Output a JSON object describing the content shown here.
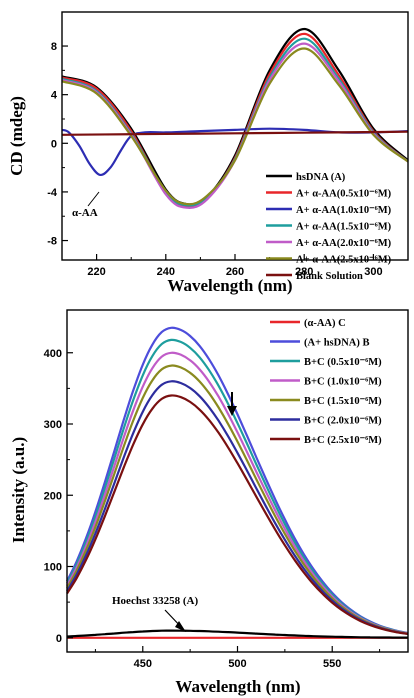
{
  "chart_data": [
    {
      "type": "line",
      "xlabel": "Wavelength (nm)",
      "ylabel": "CD (mdeg)",
      "xlim": [
        210,
        310
      ],
      "ylim": [
        -9.6,
        10.8
      ],
      "xticks": [
        220,
        240,
        260,
        280,
        300
      ],
      "yticks": [
        -8,
        -4,
        0,
        4,
        8
      ],
      "yticks_minor": [
        -6,
        -2,
        2,
        6
      ],
      "xticks_minor": [
        210,
        230,
        250,
        270,
        290,
        310
      ],
      "grid": false,
      "legend_position": "bottom-right",
      "annotation": "α-AA",
      "series": [
        {
          "name": "hsDNA (A)",
          "color": "#000000",
          "points": [
            [
              210,
              5.5
            ],
            [
              220,
              4.6
            ],
            [
              230,
              1.2
            ],
            [
              240,
              -3.8
            ],
            [
              246,
              -5.0
            ],
            [
              252,
              -4.4
            ],
            [
              260,
              -1.0
            ],
            [
              270,
              6.0
            ],
            [
              280,
              9.4
            ],
            [
              290,
              6.0
            ],
            [
              300,
              1.2
            ],
            [
              310,
              -1.4
            ]
          ]
        },
        {
          "name": "A+ α-AA(0.5x10⁻⁶M)",
          "color": "#e8262a",
          "points": [
            [
              210,
              5.4
            ],
            [
              220,
              4.5
            ],
            [
              230,
              1.0
            ],
            [
              240,
              -4.1
            ],
            [
              246,
              -5.2
            ],
            [
              252,
              -4.5
            ],
            [
              260,
              -1.2
            ],
            [
              270,
              5.7
            ],
            [
              280,
              9.0
            ],
            [
              290,
              5.6
            ],
            [
              300,
              1.0
            ],
            [
              310,
              -1.5
            ]
          ]
        },
        {
          "name": "A+ α-AA(1.0x10⁻⁶M)",
          "color": "#2d2db3",
          "points": [
            [
              210,
              1.1
            ],
            [
              212,
              0.9
            ],
            [
              215,
              -0.2
            ],
            [
              218,
              -1.7
            ],
            [
              221,
              -2.6
            ],
            [
              224,
              -2.0
            ],
            [
              227,
              -0.6
            ],
            [
              230,
              0.6
            ],
            [
              234,
              0.9
            ],
            [
              240,
              0.9
            ],
            [
              250,
              1.0
            ],
            [
              260,
              1.1
            ],
            [
              270,
              1.2
            ],
            [
              280,
              1.1
            ],
            [
              290,
              0.9
            ],
            [
              300,
              0.9
            ],
            [
              310,
              1.0
            ]
          ]
        },
        {
          "name": "A+ α-AA(1.5x10⁻⁶M)",
          "color": "#1e9e9e",
          "points": [
            [
              210,
              5.3
            ],
            [
              220,
              4.3
            ],
            [
              230,
              0.8
            ],
            [
              240,
              -4.0
            ],
            [
              246,
              -5.1
            ],
            [
              252,
              -4.4
            ],
            [
              260,
              -1.3
            ],
            [
              270,
              5.4
            ],
            [
              280,
              8.6
            ],
            [
              290,
              5.3
            ],
            [
              300,
              0.9
            ],
            [
              310,
              -1.5
            ]
          ]
        },
        {
          "name": "A+ α-AA(2.0x10⁻⁶M)",
          "color": "#c05cc8",
          "points": [
            [
              210,
              5.2
            ],
            [
              220,
              4.2
            ],
            [
              230,
              0.7
            ],
            [
              240,
              -4.2
            ],
            [
              246,
              -5.3
            ],
            [
              252,
              -4.6
            ],
            [
              260,
              -1.4
            ],
            [
              270,
              5.2
            ],
            [
              280,
              8.2
            ],
            [
              290,
              5.1
            ],
            [
              300,
              0.8
            ],
            [
              310,
              -1.5
            ]
          ]
        },
        {
          "name": "A+ α-AA(2.5x10⁻⁶M)",
          "color": "#8a8a1f",
          "points": [
            [
              210,
              5.1
            ],
            [
              220,
              4.1
            ],
            [
              230,
              0.6
            ],
            [
              240,
              -3.9
            ],
            [
              246,
              -5.0
            ],
            [
              252,
              -4.3
            ],
            [
              260,
              -1.4
            ],
            [
              270,
              4.9
            ],
            [
              280,
              7.8
            ],
            [
              290,
              4.8
            ],
            [
              300,
              0.7
            ],
            [
              310,
              -1.5
            ]
          ]
        },
        {
          "name": "Blank Solution",
          "color": "#7a1010",
          "points": [
            [
              210,
              0.7
            ],
            [
              230,
              0.75
            ],
            [
              250,
              0.8
            ],
            [
              270,
              0.85
            ],
            [
              290,
              0.9
            ],
            [
              310,
              0.95
            ]
          ]
        }
      ]
    },
    {
      "type": "line",
      "xlabel": "Wavelength (nm)",
      "ylabel": "Intensity (a.u.)",
      "xlim": [
        410,
        590
      ],
      "ylim": [
        -20,
        460
      ],
      "xticks": [
        450,
        500,
        550
      ],
      "yticks": [
        0,
        100,
        200,
        300,
        400
      ],
      "xticks_minor": [
        425,
        475,
        525,
        575
      ],
      "yticks_minor": [
        50,
        150,
        250,
        350
      ],
      "grid": false,
      "legend_position": "top-right",
      "annotation": "Hoechst 33258 (A)",
      "series": [
        {
          "name": "(α-AA) C",
          "color": "#e8262a",
          "peak": 0
        },
        {
          "name": "(A+ hsDNA) B",
          "color": "#4d4ddb",
          "peak": 435
        },
        {
          "name": "B+C (0.5x10⁻⁶M)",
          "color": "#1e9e9e",
          "peak": 418
        },
        {
          "name": "B+C (1.0x10⁻⁶M)",
          "color": "#c05cc8",
          "peak": 400
        },
        {
          "name": "B+C (1.5x10⁻⁶M)",
          "color": "#8a8a1f",
          "peak": 382
        },
        {
          "name": "B+C (2.0x10⁻⁶M)",
          "color": "#2d2d9e",
          "peak": 360
        },
        {
          "name": "B+C (2.5x10⁻⁶M)",
          "color": "#7a1010",
          "peak": 340
        },
        {
          "color": "#000000",
          "peak": 10
        }
      ]
    }
  ]
}
